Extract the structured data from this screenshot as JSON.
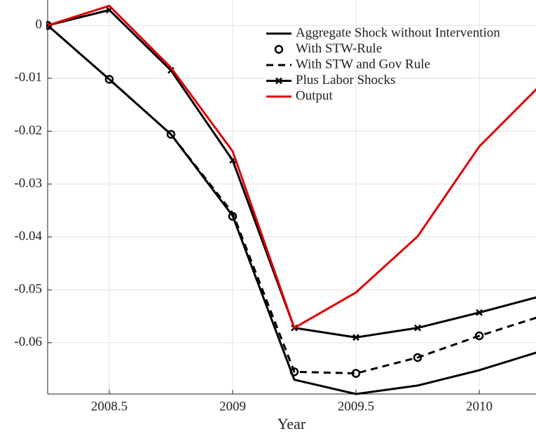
{
  "chart_data": {
    "type": "line",
    "x_label": "Year",
    "x": [
      2008.25,
      2008.5,
      2008.75,
      2009,
      2009.25,
      2009.5,
      2009.75,
      2010,
      2010.25
    ],
    "xlim": [
      2008.25,
      2010.23
    ],
    "xticks": [
      2008.5,
      2009,
      2009.5,
      2010
    ],
    "ylim": [
      -0.0697,
      0.0048
    ],
    "yticks": [
      0,
      -0.01,
      -0.02,
      -0.03,
      -0.04,
      -0.05,
      -0.06
    ],
    "grid": true,
    "legend": "upper right",
    "series": [
      {
        "name": "Aggregate Shock without Intervention",
        "color": "#000000",
        "linestyle": "solid",
        "marker": "none",
        "values": [
          0,
          -0.0102,
          -0.0206,
          -0.036,
          -0.067,
          -0.0697,
          -0.0681,
          -0.0652,
          -0.0616
        ]
      },
      {
        "name": "With STW-Rule",
        "color": "#000000",
        "linestyle": "none",
        "marker": "o",
        "values": [
          0,
          -0.0102,
          -0.0206,
          -0.0361,
          -0.0655,
          -0.0658,
          -0.0628,
          -0.0587,
          -0.055
        ]
      },
      {
        "name": "With STW and Gov Rule",
        "color": "#000000",
        "linestyle": "dashed",
        "marker": "none",
        "values": [
          0,
          -0.0102,
          -0.0206,
          -0.0355,
          -0.0655,
          -0.0658,
          -0.0628,
          -0.0587,
          -0.055
        ]
      },
      {
        "name": "Plus Labor Shocks",
        "color": "#000000",
        "linestyle": "solid",
        "marker": "x",
        "values": [
          0,
          0.0029,
          -0.0085,
          -0.0255,
          -0.0572,
          -0.059,
          -0.0572,
          -0.0543,
          -0.0512
        ]
      },
      {
        "name": "Output",
        "color": "#e00000",
        "linestyle": "solid",
        "marker": "none",
        "values": [
          0,
          0.0037,
          -0.008,
          -0.0238,
          -0.0572,
          -0.0505,
          -0.0399,
          -0.0229,
          -0.0112
        ]
      }
    ]
  }
}
